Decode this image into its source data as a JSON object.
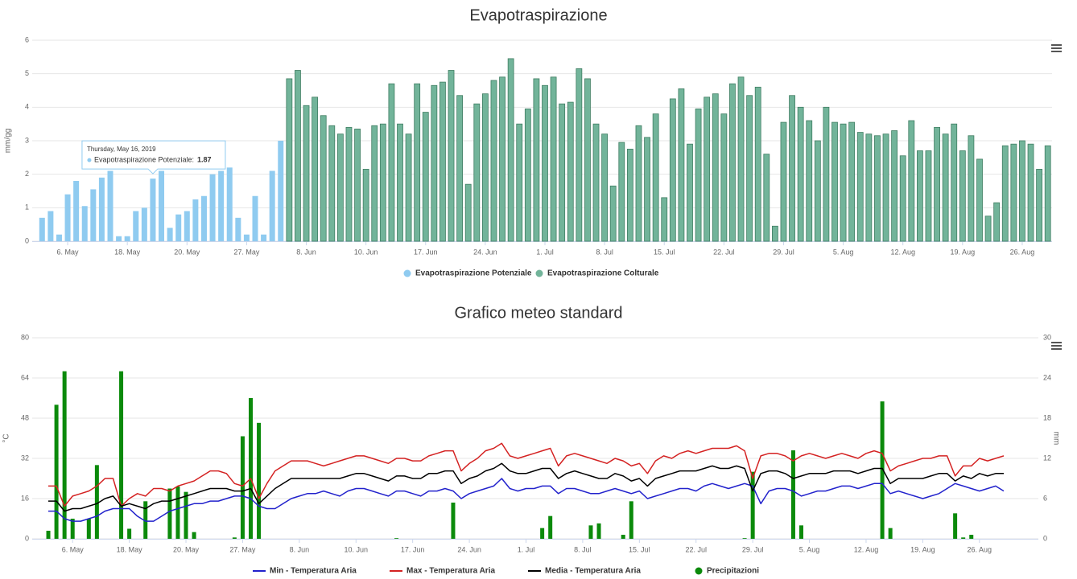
{
  "chart_data": [
    {
      "type": "bar",
      "title": "Evapotraspirazione",
      "y_label": "mm/gg",
      "categories": [
        null,
        null,
        null,
        "6. May",
        null,
        null,
        null,
        null,
        null,
        null,
        "18. May",
        null,
        null,
        null,
        null,
        null,
        null,
        "20. May",
        null,
        null,
        null,
        null,
        null,
        null,
        "27. May",
        null,
        null,
        null,
        null,
        null,
        null,
        "8. Jun",
        null,
        null,
        null,
        null,
        null,
        null,
        "10. Jun",
        null,
        null,
        null,
        null,
        null,
        null,
        "17. Jun",
        null,
        null,
        null,
        null,
        null,
        null,
        "24. Jun",
        null,
        null,
        null,
        null,
        null,
        null,
        "1. Jul",
        null,
        null,
        null,
        null,
        null,
        null,
        "8. Jul",
        null,
        null,
        null,
        null,
        null,
        null,
        "15. Jul",
        null,
        null,
        null,
        null,
        null,
        null,
        "22. Jul",
        null,
        null,
        null,
        null,
        null,
        null,
        "29. Jul",
        null,
        null,
        null,
        null,
        null,
        null,
        "5. Aug",
        null,
        null,
        null,
        null,
        null,
        null,
        "12. Aug",
        null,
        null,
        null,
        null,
        null,
        null,
        "19. Aug",
        null,
        null,
        null,
        null,
        null,
        null,
        "26. Aug",
        null,
        null,
        null
      ],
      "series": [
        {
          "name": "Evapotraspirazione Potenziale",
          "color": "#8fcbf0",
          "values": [
            0.7,
            0.9,
            0.2,
            1.4,
            1.8,
            1.05,
            1.55,
            1.9,
            2.1,
            0.15,
            0.15,
            0.9,
            1.0,
            1.87,
            2.1,
            0.4,
            0.8,
            0.9,
            1.25,
            1.35,
            2.0,
            2.1,
            2.2,
            0.7,
            0.2,
            1.35,
            0.2,
            2.1,
            3.0,
            null,
            null,
            null,
            null,
            null,
            null,
            null,
            null,
            null,
            null,
            null,
            null,
            null,
            null,
            null,
            null,
            null,
            null,
            null,
            null,
            null,
            null,
            null,
            null,
            null,
            null,
            null,
            null,
            null,
            null,
            null,
            null,
            null,
            null,
            null,
            null,
            null,
            null,
            null,
            null,
            null,
            null,
            null,
            null,
            null,
            null,
            null,
            null,
            null,
            null,
            null,
            null,
            null,
            null,
            null,
            null,
            null,
            null,
            null,
            null,
            null,
            null,
            null,
            null,
            null,
            null,
            null,
            null,
            null,
            null,
            null,
            null,
            null,
            null,
            null,
            null,
            null,
            null,
            null,
            null,
            null,
            null,
            null,
            null,
            null,
            null,
            null,
            null,
            null,
            null
          ]
        },
        {
          "name": "Evapotraspirazione Colturale",
          "color": "#72b49a",
          "values": [
            null,
            null,
            null,
            null,
            null,
            null,
            null,
            null,
            null,
            null,
            null,
            null,
            null,
            null,
            null,
            null,
            null,
            null,
            null,
            null,
            null,
            null,
            null,
            null,
            null,
            null,
            null,
            null,
            null,
            4.85,
            5.1,
            4.05,
            4.3,
            3.75,
            3.45,
            3.2,
            3.4,
            3.35,
            2.15,
            3.45,
            3.5,
            4.7,
            3.5,
            3.2,
            4.7,
            3.85,
            4.65,
            4.75,
            5.1,
            4.35,
            1.7,
            4.1,
            4.4,
            4.8,
            4.9,
            5.45,
            3.5,
            3.95,
            4.85,
            4.65,
            4.9,
            4.1,
            4.15,
            5.15,
            4.85,
            3.5,
            3.2,
            1.65,
            2.95,
            2.75,
            3.45,
            3.1,
            3.8,
            1.3,
            4.25,
            4.55,
            2.9,
            3.95,
            4.3,
            4.4,
            3.8,
            4.7,
            4.9,
            4.35,
            4.6,
            2.6,
            0.45,
            3.55,
            4.35,
            4.0,
            3.6,
            3.0,
            4.0,
            3.55,
            3.5,
            3.55,
            3.25,
            3.2,
            3.15,
            3.2,
            3.3,
            2.55,
            3.6,
            2.7,
            2.7,
            3.4,
            3.2,
            3.5,
            2.7,
            3.15,
            2.45,
            0.75,
            1.15,
            2.85,
            2.9,
            3.0,
            2.9,
            2.15,
            2.85
          ]
        }
      ],
      "ylim": [
        0,
        6
      ],
      "yticks": [
        0,
        1,
        2,
        3,
        4,
        5,
        6
      ],
      "grid": true,
      "tooltip": {
        "title": "Thursday, May 16, 2019",
        "label": "Evapotraspirazione Potenziale:"
      }
    },
    {
      "type": "combo",
      "title": "Grafico meteo standard",
      "y_label": "°C",
      "y2_label": "mm",
      "categories": [
        null,
        null,
        null,
        "6. May",
        null,
        null,
        null,
        null,
        null,
        null,
        "18. May",
        null,
        null,
        null,
        null,
        null,
        null,
        "20. May",
        null,
        null,
        null,
        null,
        null,
        null,
        "27. May",
        null,
        null,
        null,
        null,
        null,
        null,
        "8. Jun",
        null,
        null,
        null,
        null,
        null,
        null,
        "10. Jun",
        null,
        null,
        null,
        null,
        null,
        null,
        "17. Jun",
        null,
        null,
        null,
        null,
        null,
        null,
        "24. Jun",
        null,
        null,
        null,
        null,
        null,
        null,
        "1. Jul",
        null,
        null,
        null,
        null,
        null,
        null,
        "8. Jul",
        null,
        null,
        null,
        null,
        null,
        null,
        "15. Jul",
        null,
        null,
        null,
        null,
        null,
        null,
        "22. Jul",
        null,
        null,
        null,
        null,
        null,
        null,
        "29. Jul",
        null,
        null,
        null,
        null,
        null,
        null,
        "5. Aug",
        null,
        null,
        null,
        null,
        null,
        null,
        "12. Aug",
        null,
        null,
        null,
        null,
        null,
        null,
        "19. Aug",
        null,
        null,
        null,
        null,
        null,
        null,
        "26. Aug",
        null,
        null,
        null
      ],
      "series": [
        {
          "name": "Min - Temperatura Aria",
          "type": "line",
          "color": "#2222cc",
          "values": [
            11,
            11,
            8,
            7,
            7,
            8,
            9,
            11,
            12,
            12,
            12,
            9,
            7,
            7,
            9,
            11,
            12,
            13,
            14,
            14,
            15,
            15,
            16,
            17,
            17,
            16,
            13,
            12,
            12,
            14,
            16,
            17,
            18,
            18,
            19,
            18,
            17,
            19,
            20,
            20,
            19,
            18,
            17,
            19,
            19,
            18,
            17,
            19,
            19,
            20,
            19,
            16,
            18,
            19,
            20,
            21,
            24,
            20,
            19,
            20,
            20,
            21,
            21,
            18,
            20,
            20,
            19,
            18,
            18,
            19,
            20,
            19,
            18,
            19,
            16,
            17,
            18,
            19,
            20,
            20,
            19,
            21,
            22,
            21,
            20,
            21,
            22,
            21,
            14,
            19,
            20,
            20,
            19,
            17,
            18,
            19,
            19,
            20,
            21,
            21,
            20,
            21,
            22,
            22,
            18,
            19,
            18,
            17,
            16,
            17,
            18,
            20,
            22,
            21,
            20,
            19,
            20,
            21,
            19
          ]
        },
        {
          "name": "Max - Temperatura Aria",
          "type": "line",
          "color": "#d42222",
          "values": [
            21,
            21,
            13,
            17,
            18,
            19,
            21,
            24,
            24,
            13,
            16,
            18,
            17,
            20,
            20,
            19,
            21,
            22,
            23,
            25,
            27,
            27,
            26,
            22,
            21,
            24,
            16,
            22,
            27,
            29,
            31,
            31,
            31,
            30,
            29,
            30,
            31,
            32,
            33,
            33,
            32,
            31,
            30,
            32,
            32,
            31,
            31,
            33,
            34,
            35,
            35,
            27,
            30,
            32,
            35,
            36,
            38,
            33,
            32,
            33,
            34,
            35,
            36,
            29,
            33,
            34,
            33,
            32,
            31,
            30,
            32,
            31,
            29,
            30,
            26,
            31,
            33,
            32,
            34,
            35,
            34,
            35,
            36,
            36,
            36,
            37,
            35,
            24,
            33,
            34,
            34,
            33,
            31,
            33,
            34,
            33,
            32,
            33,
            34,
            33,
            32,
            34,
            35,
            34,
            27,
            29,
            30,
            31,
            32,
            32,
            33,
            33,
            25,
            29,
            29,
            32,
            31,
            32,
            33
          ]
        },
        {
          "name": "Media - Temperatura Aria",
          "type": "line",
          "color": "#000000",
          "values": [
            15,
            15,
            11,
            12,
            12,
            13,
            14,
            16,
            17,
            13,
            14,
            13,
            12,
            14,
            15,
            15,
            16,
            17,
            18,
            19,
            20,
            20,
            20,
            19,
            19,
            20,
            14,
            17,
            20,
            22,
            24,
            24,
            24,
            24,
            24,
            24,
            24,
            25,
            26,
            26,
            25,
            24,
            23,
            25,
            25,
            24,
            24,
            26,
            26,
            27,
            27,
            22,
            24,
            25,
            27,
            28,
            30,
            27,
            26,
            26,
            27,
            28,
            28,
            24,
            26,
            27,
            26,
            25,
            24,
            24,
            26,
            25,
            23,
            24,
            21,
            24,
            25,
            26,
            27,
            27,
            27,
            28,
            29,
            28,
            28,
            29,
            28,
            19,
            26,
            27,
            27,
            26,
            24,
            25,
            26,
            26,
            26,
            27,
            27,
            27,
            26,
            27,
            28,
            28,
            22,
            24,
            24,
            24,
            24,
            25,
            26,
            26,
            23,
            25,
            24,
            26,
            25,
            26,
            26
          ]
        },
        {
          "name": "Precipitazioni",
          "type": "bar",
          "axis": "y2",
          "color": "#0b8a0b",
          "values": [
            1.2,
            20,
            25,
            3,
            0,
            3,
            11,
            0,
            0,
            25,
            1.5,
            0,
            5.6,
            0,
            0,
            7.5,
            7.8,
            7,
            1,
            0,
            0,
            0,
            0,
            0.2,
            15.3,
            21,
            17.3,
            0,
            0,
            0,
            0,
            0,
            0,
            0,
            0,
            0,
            0,
            0,
            0,
            0,
            0,
            0,
            0,
            0.1,
            0,
            0,
            0,
            0,
            0,
            0,
            5.4,
            0,
            0,
            0,
            0,
            0,
            0,
            0,
            0,
            0,
            0,
            1.6,
            3.4,
            0,
            0,
            0,
            0,
            2,
            2.3,
            0,
            0,
            0.6,
            5.6,
            0,
            0,
            0,
            0,
            0,
            0,
            0,
            0,
            0,
            0,
            0,
            0,
            0,
            0.1,
            10,
            0,
            0,
            0,
            0,
            13.2,
            2,
            0,
            0,
            0,
            0,
            0,
            0,
            0,
            0,
            0,
            20.5,
            1.6,
            0,
            0,
            0,
            0,
            0,
            0,
            0,
            3.8,
            0.2,
            0.6,
            0,
            0,
            0,
            0
          ]
        }
      ],
      "ylim": [
        0,
        80
      ],
      "yticks": [
        0,
        16,
        32,
        48,
        64,
        80
      ],
      "y2lim": [
        0,
        30
      ],
      "y2ticks": [
        0,
        6,
        12,
        18,
        24,
        30
      ],
      "grid": true
    }
  ]
}
